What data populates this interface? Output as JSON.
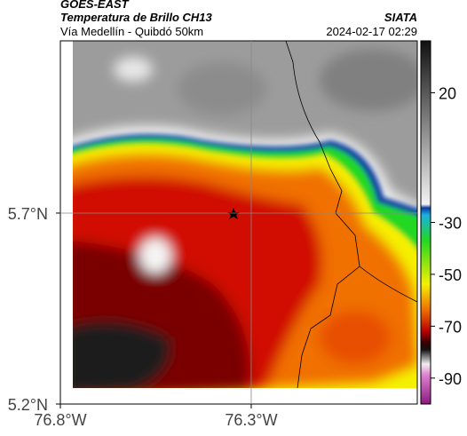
{
  "header": {
    "source": "GOES-EAST",
    "title": "Temperatura de Brillo CH13",
    "subtitle": "Vía Medellín - Quibdó 50km",
    "agency": "SIATA",
    "datetime": "2024-02-17 02:29"
  },
  "map": {
    "xlim": [
      -76.8,
      -75.865
    ],
    "ylim": [
      5.2,
      6.151
    ],
    "xticks": [
      {
        "value": -76.8,
        "label": "76.8°W"
      },
      {
        "value": -76.3,
        "label": "76.3°W"
      }
    ],
    "yticks": [
      {
        "value": 5.2,
        "label": "5.2°N"
      },
      {
        "value": 5.7,
        "label": "5.7°N"
      }
    ],
    "colorbar": {
      "lim": [
        40,
        -100
      ],
      "ticks": [
        20,
        -30,
        -50,
        -70,
        -90
      ]
    }
  }
}
